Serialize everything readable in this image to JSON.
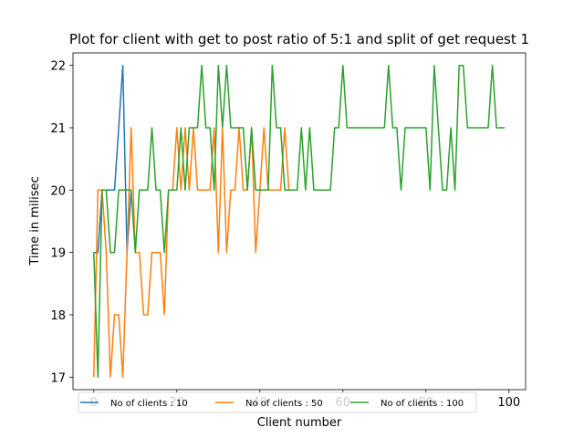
{
  "chart_data": {
    "type": "line",
    "title": "Plot for client with get to post ratio of 5:1 and split of get request 1",
    "xlabel": "Client number",
    "ylabel": "Time in milisec",
    "xlim": [
      -5,
      104
    ],
    "ylim": [
      16.8,
      22.2
    ],
    "xticks": [
      0,
      20,
      40,
      60,
      80,
      100
    ],
    "yticks": [
      17,
      18,
      19,
      20,
      21,
      22
    ],
    "legend_position": "bottom",
    "series": [
      {
        "name": "No of clients : 10",
        "color": "#1f77b4",
        "x": [
          0,
          1,
          2,
          3,
          4,
          5,
          6,
          7,
          8,
          9
        ],
        "y": [
          19,
          19,
          20,
          20,
          20,
          20,
          21,
          22,
          19,
          20
        ]
      },
      {
        "name": "No of clients : 50",
        "color": "#ff7f0e",
        "x": [
          0,
          1,
          2,
          3,
          4,
          5,
          6,
          7,
          8,
          9,
          10,
          11,
          12,
          13,
          14,
          15,
          16,
          17,
          18,
          19,
          20,
          21,
          22,
          23,
          24,
          25,
          26,
          27,
          28,
          29,
          30,
          31,
          32,
          33,
          34,
          35,
          36,
          37,
          38,
          39,
          40,
          41,
          42,
          43,
          44,
          45,
          46,
          47,
          48,
          49
        ],
        "y": [
          17,
          20,
          20,
          19,
          17,
          18,
          18,
          17,
          19,
          21,
          19,
          19,
          18,
          18,
          19,
          19,
          19,
          18,
          20,
          20,
          21,
          20,
          21,
          20,
          21,
          20,
          20,
          20,
          20,
          21,
          19,
          21,
          19,
          20,
          20,
          21,
          20,
          20,
          21,
          19,
          20,
          21,
          20,
          20,
          20,
          20,
          21,
          20,
          20,
          20
        ]
      },
      {
        "name": "No of clients : 100",
        "color": "#2ca02c",
        "x": [
          0,
          1,
          2,
          3,
          4,
          5,
          6,
          7,
          8,
          9,
          10,
          11,
          12,
          13,
          14,
          15,
          16,
          17,
          18,
          19,
          20,
          21,
          22,
          23,
          24,
          25,
          26,
          27,
          28,
          29,
          30,
          31,
          32,
          33,
          34,
          35,
          36,
          37,
          38,
          39,
          40,
          41,
          42,
          43,
          44,
          45,
          46,
          47,
          48,
          49,
          50,
          51,
          52,
          53,
          54,
          55,
          56,
          57,
          58,
          59,
          60,
          61,
          62,
          63,
          64,
          65,
          66,
          67,
          68,
          69,
          70,
          71,
          72,
          73,
          74,
          75,
          76,
          77,
          78,
          79,
          80,
          81,
          82,
          83,
          84,
          85,
          86,
          87,
          88,
          89,
          90,
          91,
          92,
          93,
          94,
          95,
          96,
          97,
          98,
          99
        ],
        "y": [
          19,
          17,
          20,
          20,
          19,
          19,
          20,
          20,
          20,
          20,
          19,
          20,
          20,
          20,
          21,
          20,
          20,
          19,
          20,
          20,
          20,
          21,
          20,
          21,
          21,
          21,
          22,
          21,
          21,
          20,
          22,
          21,
          22,
          21,
          21,
          21,
          21,
          20,
          21,
          20,
          20,
          20,
          20,
          22,
          21,
          21,
          20,
          20,
          20,
          20,
          21,
          20,
          21,
          20,
          20,
          20,
          20,
          20,
          21,
          21,
          22,
          21,
          21,
          21,
          21,
          21,
          21,
          21,
          21,
          21,
          21,
          22,
          21,
          21,
          20,
          21,
          21,
          21,
          21,
          21,
          21,
          20,
          22,
          21,
          20,
          20,
          21,
          20,
          22,
          22,
          21,
          21,
          21,
          21,
          21,
          21,
          22,
          21,
          21,
          21
        ]
      }
    ]
  }
}
